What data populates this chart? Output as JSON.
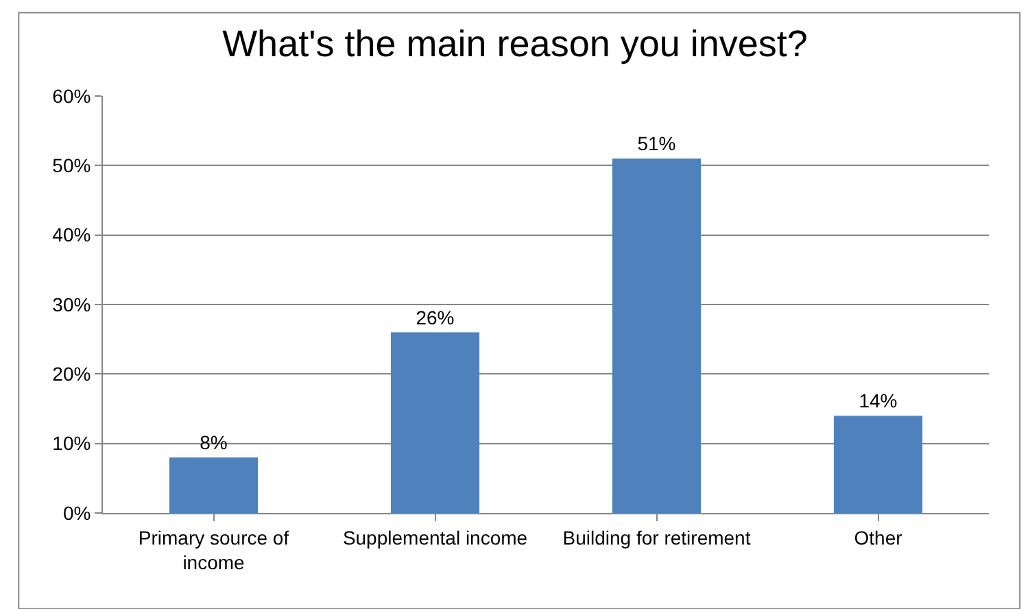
{
  "chart_data": {
    "type": "bar",
    "title": "What's the main reason you invest?",
    "categories": [
      "Primary source of income",
      "Supplemental income",
      "Building for retirement",
      "Other"
    ],
    "values": [
      8,
      26,
      51,
      14
    ],
    "value_labels": [
      "8%",
      "26%",
      "51%",
      "14%"
    ],
    "color": "#4f81bd",
    "ylim": [
      0,
      60
    ],
    "yticks": [
      {
        "value": 0,
        "label": "0%"
      },
      {
        "value": 10,
        "label": "10%"
      },
      {
        "value": 20,
        "label": "20%"
      },
      {
        "value": 30,
        "label": "30%"
      },
      {
        "value": 40,
        "label": "40%"
      },
      {
        "value": 50,
        "label": "50%"
      },
      {
        "value": 60,
        "label": "60%"
      }
    ],
    "grid": "y"
  }
}
